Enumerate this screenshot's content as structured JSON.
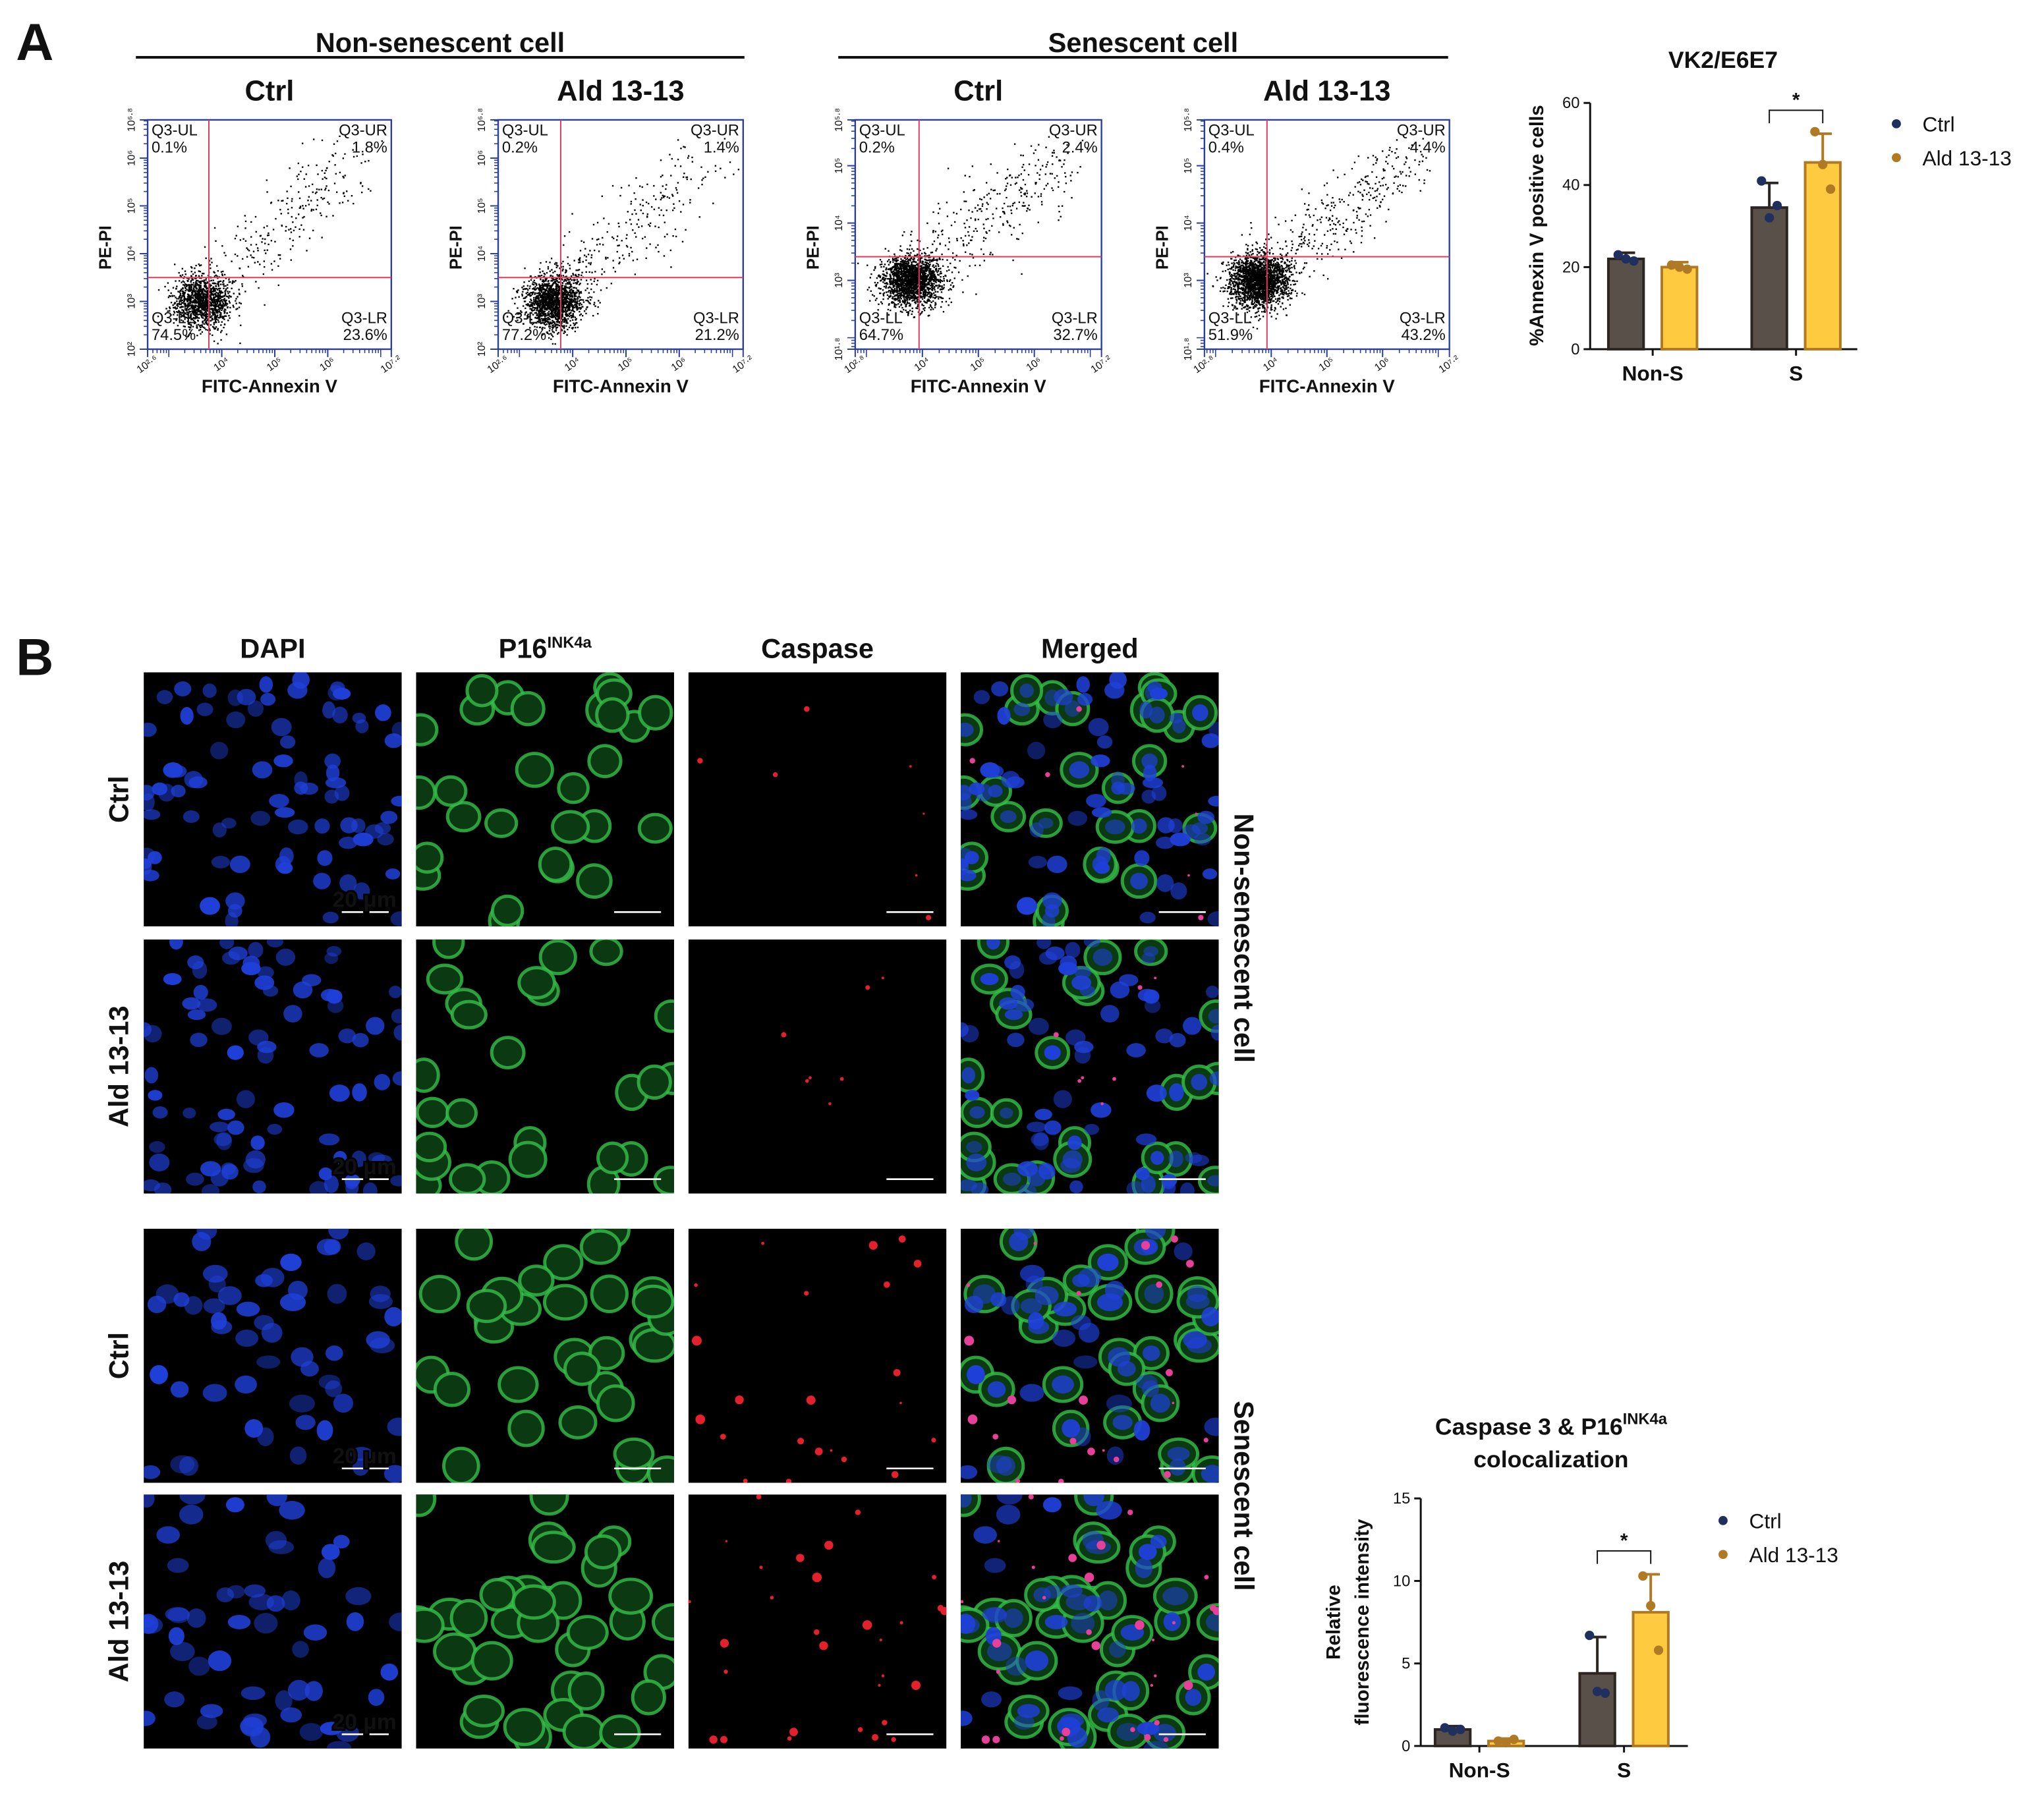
{
  "panels": {
    "a": "A",
    "b": "B"
  },
  "flow_cytometry": {
    "groups": [
      {
        "title": "Non-senescent cell"
      },
      {
        "title": "Senescent cell"
      }
    ],
    "plots": [
      {
        "title": "Ctrl",
        "x_label": "FITC-Annexin V",
        "y_label": "PE-PI",
        "xlim": [
          2.6,
          7.2
        ],
        "xticks": [
          {
            "value": 2.6,
            "label": "10²·⁶"
          },
          {
            "value": 4,
            "label": "10⁴"
          },
          {
            "value": 5,
            "label": "10⁵"
          },
          {
            "value": 6,
            "label": "10⁶"
          },
          {
            "value": 7.2,
            "label": "10⁷·²"
          }
        ],
        "ylim": [
          2,
          6.8
        ],
        "yticks": [
          {
            "value": 2,
            "label": "10²"
          },
          {
            "value": 3,
            "label": "10³"
          },
          {
            "value": 4,
            "label": "10⁴"
          },
          {
            "value": 5,
            "label": "10⁵"
          },
          {
            "value": 6,
            "label": "10⁶"
          },
          {
            "value": 6.8,
            "label": "10⁶·⁸"
          }
        ],
        "quadrants": [
          {
            "name": "Q3-UL",
            "percent": "0.1%"
          },
          {
            "name": "Q3-UR",
            "percent": "1.8%"
          },
          {
            "name": "Q3-LL",
            "percent": "74.5%"
          },
          {
            "name": "Q3-LR",
            "percent": "23.6%"
          }
        ]
      },
      {
        "title": "Ald 13-13",
        "x_label": "FITC-Annexin V",
        "y_label": "PE-PI",
        "xlim": [
          2.6,
          7.2
        ],
        "xticks": [
          {
            "value": 2.6,
            "label": "10²·⁶"
          },
          {
            "value": 4,
            "label": "10⁴"
          },
          {
            "value": 5,
            "label": "10⁵"
          },
          {
            "value": 6,
            "label": "10⁶"
          },
          {
            "value": 7.2,
            "label": "10⁷·²"
          }
        ],
        "ylim": [
          2,
          6.8
        ],
        "yticks": [
          {
            "value": 2,
            "label": "10²"
          },
          {
            "value": 3,
            "label": "10³"
          },
          {
            "value": 4,
            "label": "10⁴"
          },
          {
            "value": 5,
            "label": "10⁵"
          },
          {
            "value": 6,
            "label": "10⁶"
          },
          {
            "value": 6.8,
            "label": "10⁶·⁸"
          }
        ],
        "quadrants": [
          {
            "name": "Q3-UL",
            "percent": "0.2%"
          },
          {
            "name": "Q3-UR",
            "percent": "1.4%"
          },
          {
            "name": "Q3-LL",
            "percent": "77.2%"
          },
          {
            "name": "Q3-LR",
            "percent": "21.2%"
          }
        ]
      },
      {
        "title": "Ctrl",
        "x_label": "FITC-Annexin V",
        "y_label": "PE-PI",
        "xlim": [
          2.8,
          7.2
        ],
        "xticks": [
          {
            "value": 2.8,
            "label": "10²·⁸"
          },
          {
            "value": 4,
            "label": "10⁴"
          },
          {
            "value": 5,
            "label": "10⁵"
          },
          {
            "value": 6,
            "label": "10⁶"
          },
          {
            "value": 7.2,
            "label": "10⁷·²"
          }
        ],
        "ylim": [
          1.8,
          5.8
        ],
        "yticks": [
          {
            "value": 1.8,
            "label": "10¹·⁸"
          },
          {
            "value": 3,
            "label": "10³"
          },
          {
            "value": 4,
            "label": "10⁴"
          },
          {
            "value": 5,
            "label": "10⁵"
          },
          {
            "value": 5.8,
            "label": "10⁵·⁸"
          }
        ],
        "quadrants": [
          {
            "name": "Q3-UL",
            "percent": "0.2%"
          },
          {
            "name": "Q3-UR",
            "percent": "2.4%"
          },
          {
            "name": "Q3-LL",
            "percent": "64.7%"
          },
          {
            "name": "Q3-LR",
            "percent": "32.7%"
          }
        ]
      },
      {
        "title": "Ald 13-13",
        "x_label": "FITC-Annexin V",
        "y_label": "PE-PI",
        "xlim": [
          2.8,
          7.2
        ],
        "xticks": [
          {
            "value": 2.8,
            "label": "10²·⁸"
          },
          {
            "value": 4,
            "label": "10⁴"
          },
          {
            "value": 5,
            "label": "10⁵"
          },
          {
            "value": 6,
            "label": "10⁶"
          },
          {
            "value": 7.2,
            "label": "10⁷·²"
          }
        ],
        "ylim": [
          1.8,
          5.8
        ],
        "yticks": [
          {
            "value": 1.8,
            "label": "10¹·⁸"
          },
          {
            "value": 3,
            "label": "10³"
          },
          {
            "value": 4,
            "label": "10⁴"
          },
          {
            "value": 5,
            "label": "10⁵"
          },
          {
            "value": 5.8,
            "label": "10⁵·⁸"
          }
        ],
        "quadrants": [
          {
            "name": "Q3-UL",
            "percent": "0.4%"
          },
          {
            "name": "Q3-UR",
            "percent": "4.4%"
          },
          {
            "name": "Q3-LL",
            "percent": "51.9%"
          },
          {
            "name": "Q3-LR",
            "percent": "43.2%"
          }
        ]
      }
    ]
  },
  "microscopy": {
    "columns": [
      {
        "text": "DAPI"
      },
      {
        "text": "P16",
        "superscript": "INK4a"
      },
      {
        "text": "Caspase"
      },
      {
        "text": "Merged"
      }
    ],
    "rows": [
      "Ctrl",
      "Ald 13-13",
      "Ctrl",
      "Ald 13-13"
    ],
    "groups": [
      "Non-senescent cell",
      "Senescent cell"
    ],
    "scale_bar": "20 μm"
  },
  "chart_data": [
    {
      "type": "bar",
      "title": "VK2/E6E7",
      "y_label": "%Annexin V positive cells",
      "categories": [
        "Non-S",
        "S"
      ],
      "ylim": [
        0,
        60
      ],
      "yticks": [
        0,
        20,
        40,
        60
      ],
      "significance": [
        null,
        "*"
      ],
      "series": [
        {
          "name": "Ctrl",
          "color": "#595049",
          "edge_color": "#2b2622",
          "marker_color": "#1f2f5e",
          "values": [
            22,
            34.5
          ],
          "errors": [
            1.5,
            6
          ],
          "points": [
            [
              23,
              22,
              21.5
            ],
            [
              41,
              32,
              35
            ]
          ]
        },
        {
          "name": "Ald 13-13",
          "color": "#fdca40",
          "edge_color": "#b07a25",
          "marker_color": "#b07a25",
          "values": [
            20,
            45.5
          ],
          "errors": [
            1.2,
            7
          ],
          "points": [
            [
              20.5,
              20,
              19.5
            ],
            [
              53,
              45,
              39
            ]
          ]
        }
      ]
    },
    {
      "type": "bar",
      "title": "Caspase 3 & P16",
      "title_superscript": "INK4a",
      "title_line2": "colocalization",
      "y_label": [
        "Relative",
        "fluorescence intensity"
      ],
      "categories": [
        "Non-S",
        "S"
      ],
      "ylim": [
        0,
        15
      ],
      "yticks": [
        0,
        5,
        10,
        15
      ],
      "significance": [
        null,
        "*"
      ],
      "series": [
        {
          "name": "Ctrl",
          "color": "#595049",
          "edge_color": "#2b2622",
          "marker_color": "#1f2f5e",
          "values": [
            1,
            4.4
          ],
          "errors": [
            0.2,
            2.2
          ],
          "points": [
            [
              1.1,
              0.9,
              1.0
            ],
            [
              6.7,
              3.3,
              3.2
            ]
          ]
        },
        {
          "name": "Ald 13-13",
          "color": "#fdca40",
          "edge_color": "#b07a25",
          "marker_color": "#b07a25",
          "values": [
            0.3,
            8.1
          ],
          "errors": [
            0.15,
            2.3
          ],
          "points": [
            [
              0.3,
              0.2,
              0.4
            ],
            [
              10.3,
              8.5,
              5.8
            ]
          ]
        }
      ]
    }
  ]
}
